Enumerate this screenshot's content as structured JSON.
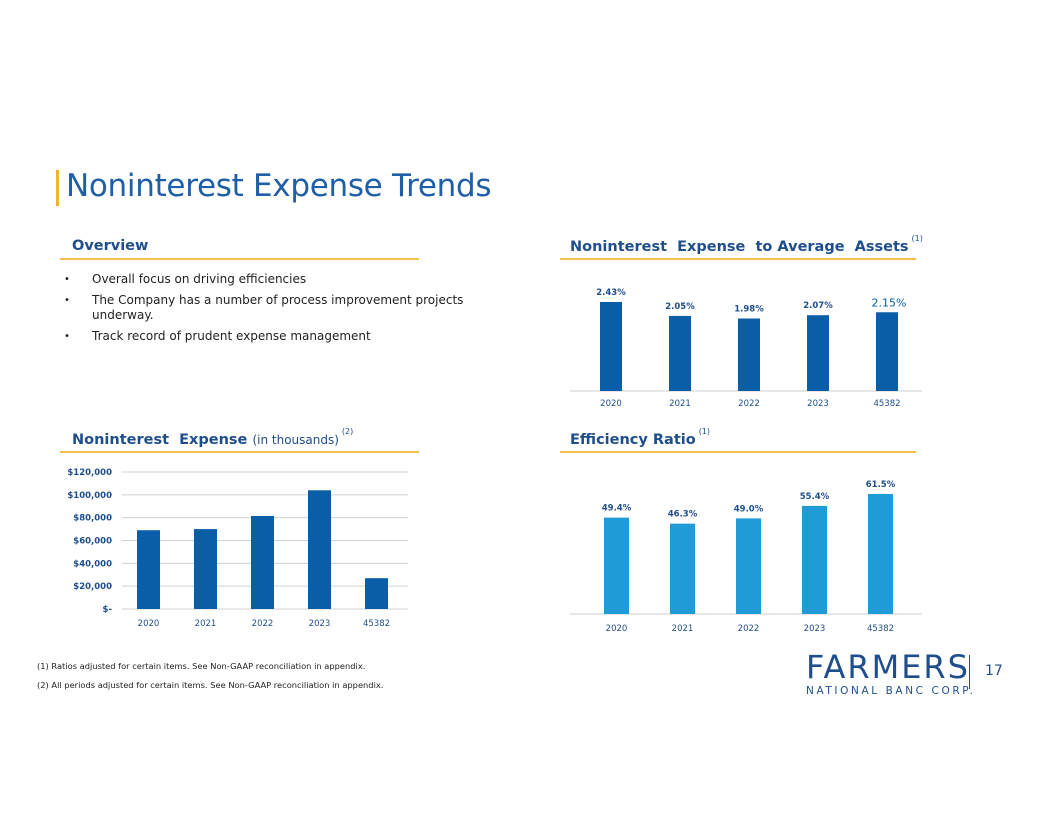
{
  "page": {
    "title": "Noninterest Expense Trends",
    "page_number": "17"
  },
  "overview": {
    "heading": "Overview",
    "bullets": [
      "Overall focus on driving efficiencies",
      "The Company has a number of process improvement projects underway.",
      "Track record of prudent expense management"
    ]
  },
  "assets_section": {
    "heading": "Noninterest  Expense  to Average  Assets",
    "footnote_ref": "(1)"
  },
  "expense_section": {
    "heading": "Noninterest  Expense",
    "sub": "(in thousands)",
    "footnote_ref": "(2)"
  },
  "efficiency_section": {
    "heading": "Efficiency Ratio",
    "footnote_ref": "(1)"
  },
  "footnotes": [
    "(1) Ratios adjusted for certain items. See Non-GAAP reconciliation in appendix.",
    "(2) All periods adjusted for certain items. See Non-GAAP reconciliation in appendix."
  ],
  "logo": {
    "word": "FARMERS",
    "sub": "NATIONAL BANC CORP."
  },
  "colors": {
    "dark_blue": "#0a5ea8",
    "light_blue": "#1f9bd7",
    "accent": "#f2c14e"
  },
  "chart_data": [
    {
      "type": "bar",
      "categories": [
        "2020",
        "2021",
        "2022",
        "2023",
        "45382"
      ],
      "values": [
        2.43,
        2.05,
        1.98,
        2.07,
        2.15
      ],
      "data_labels": [
        "2.43%",
        "2.05%",
        "1.98%",
        "2.07%",
        "2.15%"
      ],
      "ylim": [
        0,
        2.43
      ],
      "title": "",
      "xlabel": "",
      "ylabel": "",
      "grid": false
    },
    {
      "type": "bar",
      "categories": [
        "2020",
        "2021",
        "2022",
        "2023",
        "45382"
      ],
      "values": [
        69000,
        70000,
        81500,
        104000,
        27000
      ],
      "yticks": [
        "$-",
        "$20,000",
        "$40,000",
        "$60,000",
        "$80,000",
        "$100,000",
        "$120,000"
      ],
      "ylim": [
        0,
        120000
      ],
      "title": "",
      "xlabel": "",
      "ylabel": "",
      "grid": true
    },
    {
      "type": "bar",
      "categories": [
        "2020",
        "2021",
        "2022",
        "2023",
        "45382"
      ],
      "values": [
        49.4,
        46.3,
        49.0,
        55.4,
        61.5
      ],
      "data_labels": [
        "49.4%",
        "46.3%",
        "49.0%",
        "55.4%",
        "61.5%"
      ],
      "ylim": [
        0,
        61.5
      ],
      "title": "",
      "xlabel": "",
      "ylabel": "",
      "grid": false
    }
  ]
}
